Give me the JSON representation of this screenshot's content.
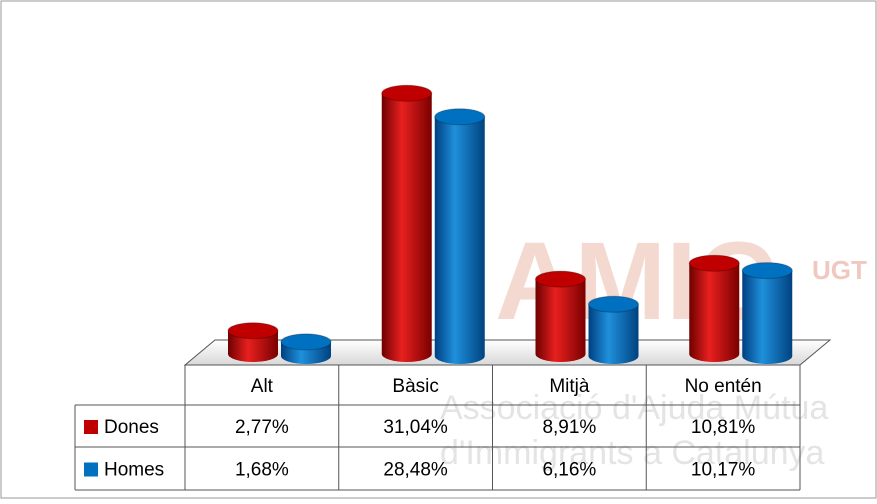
{
  "chart_data": {
    "type": "bar",
    "categories": [
      "Alt",
      "Bàsic",
      "Mitjà",
      "No entén"
    ],
    "series": [
      {
        "name": "Dones",
        "color": "#c00000",
        "values": [
          2.77,
          31.04,
          8.91,
          10.81
        ],
        "value_labels": [
          "2,77%",
          "31,04%",
          "8,91%",
          "10,81%"
        ]
      },
      {
        "name": "Homes",
        "color": "#0070c0",
        "values": [
          1.68,
          28.48,
          6.16,
          10.17
        ],
        "value_labels": [
          "1,68%",
          "28,48%",
          "6,16%",
          "10,17%"
        ]
      }
    ],
    "watermark": [
      "AMIC",
      "UGT",
      "Associació d'Ajuda Mútua",
      "d'Immigrants a Catalunya"
    ]
  }
}
